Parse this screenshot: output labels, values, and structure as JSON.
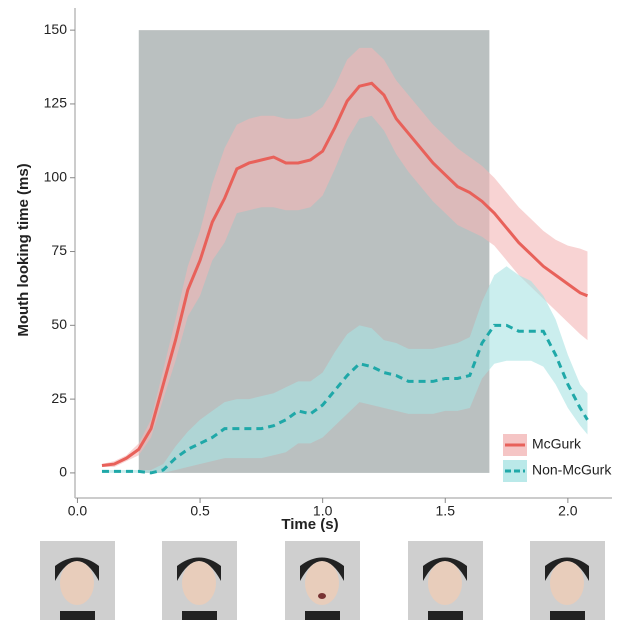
{
  "chart_data": {
    "type": "line-band",
    "x_label": "Time (s)",
    "y_label": "Mouth looking time (ms)",
    "xlim": [
      -0.01,
      2.18
    ],
    "ylim": [
      -8.5,
      157.5
    ],
    "xticks": [
      {
        "value": 0,
        "label": "0.0"
      },
      {
        "value": 0.5,
        "label": "0.5"
      },
      {
        "value": 1,
        "label": "1.0"
      },
      {
        "value": 1.5,
        "label": "1.5"
      },
      {
        "value": 2,
        "label": "2.0"
      }
    ],
    "yticks": [
      0,
      25,
      50,
      75,
      100,
      125,
      150
    ],
    "highlight": {
      "x": [
        0.25,
        1.68
      ],
      "y": [
        0,
        150
      ],
      "color": "#aeb5b5"
    },
    "x": [
      0.1,
      0.15,
      0.2,
      0.25,
      0.3,
      0.35,
      0.4,
      0.45,
      0.5,
      0.55,
      0.6,
      0.65,
      0.7,
      0.75,
      0.8,
      0.85,
      0.9,
      0.95,
      1.0,
      1.05,
      1.1,
      1.15,
      1.2,
      1.25,
      1.3,
      1.35,
      1.4,
      1.45,
      1.5,
      1.55,
      1.6,
      1.65,
      1.7,
      1.75,
      1.8,
      1.85,
      1.9,
      1.95,
      2.0,
      2.05,
      2.08
    ],
    "series": [
      {
        "name": "McGurk",
        "color": "#e8615a",
        "band_color": "#f3b6b6",
        "dashed": false,
        "values": [
          2.5,
          3,
          5,
          8,
          15,
          30,
          45,
          62,
          72,
          85,
          93,
          103,
          105,
          106,
          107,
          105,
          105,
          106,
          109,
          117,
          126,
          131,
          132,
          128,
          120,
          115,
          110,
          105,
          101,
          97,
          95,
          92,
          88,
          83,
          78,
          74,
          70,
          67,
          64,
          61,
          60
        ],
        "upper": [
          3,
          4,
          6,
          10,
          18,
          35,
          52,
          70,
          82,
          98,
          110,
          118,
          120,
          121,
          121,
          120,
          120,
          121,
          124,
          131,
          140,
          144,
          144,
          140,
          133,
          128,
          123,
          118,
          114,
          110,
          107,
          104,
          100,
          95,
          90,
          86,
          82,
          79,
          77,
          76,
          75
        ],
        "lower": [
          2,
          2,
          4,
          6,
          12,
          25,
          38,
          53,
          60,
          72,
          78,
          88,
          89,
          90,
          90,
          89,
          89,
          90,
          94,
          103,
          113,
          120,
          121,
          116,
          108,
          102,
          97,
          92,
          88,
          84,
          82,
          80,
          77,
          72,
          67,
          63,
          59,
          55,
          51,
          47,
          45
        ]
      },
      {
        "name": "Non-McGurk",
        "color": "#1fa8a8",
        "band_color": "#a9e3e3",
        "dashed": true,
        "values": [
          0.5,
          0.5,
          0.5,
          0.5,
          0,
          1,
          5,
          8,
          10,
          12,
          15,
          15,
          15,
          15,
          16,
          18,
          21,
          20,
          23,
          28,
          33,
          37,
          36,
          34,
          33,
          31,
          31,
          31,
          32,
          32,
          33,
          44,
          50,
          50,
          48,
          48,
          48,
          40,
          30,
          22,
          18
        ],
        "upper": [
          1,
          1,
          1,
          1,
          1,
          3,
          9,
          14,
          18,
          21,
          24,
          25,
          25,
          26,
          27,
          29,
          31,
          31,
          34,
          41,
          47,
          50,
          49,
          45,
          44,
          42,
          42,
          42,
          43,
          44,
          46,
          58,
          67,
          70,
          67,
          65,
          60,
          52,
          40,
          30,
          27
        ],
        "lower": [
          0,
          0,
          0,
          0,
          0,
          0,
          1,
          2,
          3,
          4,
          5,
          5,
          5,
          5,
          6,
          7,
          10,
          10,
          12,
          16,
          20,
          24,
          23,
          22,
          21,
          20,
          20,
          20,
          21,
          21,
          22,
          32,
          37,
          38,
          38,
          38,
          36,
          30,
          22,
          16,
          13
        ]
      }
    ]
  }
}
